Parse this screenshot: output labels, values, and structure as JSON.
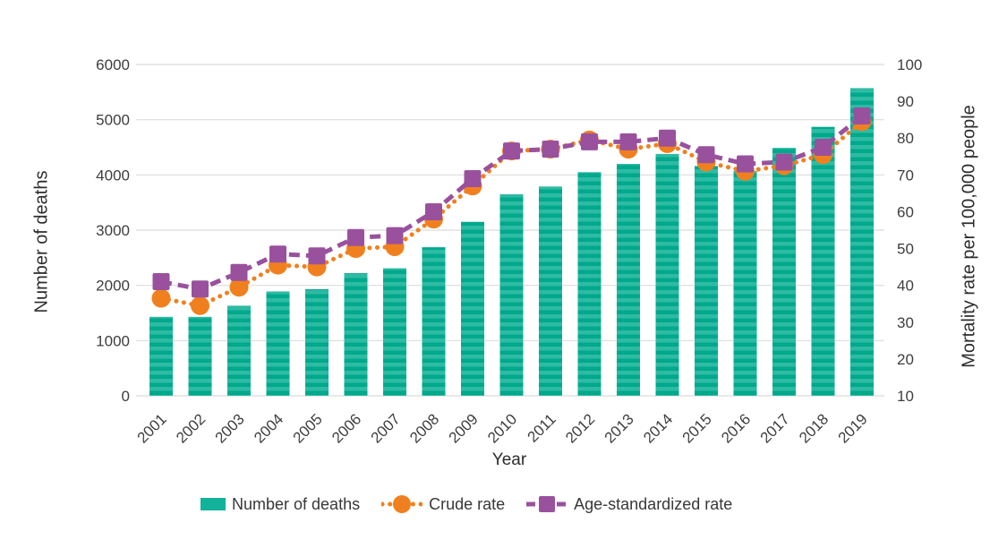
{
  "page": {
    "background": "#ffffff"
  },
  "colors": {
    "grid": "#dcdcdc",
    "text": "#3e3e3e",
    "bar_dark": "#00a88c",
    "bar_light": "#2ebba3",
    "bar_legend": "#12b29b",
    "crude": "#f0801f",
    "age_standardized": "#99519e"
  },
  "chart_data": {
    "type": "combo-bar-line",
    "x_label": "Year",
    "categories": [
      "2001",
      "2002",
      "2003",
      "2004",
      "2005",
      "2006",
      "2007",
      "2008",
      "2009",
      "2010",
      "2011",
      "2012",
      "2013",
      "2014",
      "2015",
      "2016",
      "2017",
      "2018",
      "2019"
    ],
    "left_axis": {
      "title": "Number of deaths",
      "min": 0,
      "max": 6000,
      "ticks": [
        0,
        1000,
        2000,
        3000,
        4000,
        5000,
        6000
      ]
    },
    "right_axis": {
      "title": "Mortality rate per 100,000 people",
      "min": 10,
      "max": 100,
      "ticks": [
        10,
        20,
        30,
        40,
        50,
        60,
        70,
        80,
        90,
        100
      ]
    },
    "grid": "horizontal",
    "legend_position": "bottom",
    "series": [
      {
        "name": "Number of deaths",
        "type": "bar",
        "axis": "left",
        "values": [
          1430,
          1430,
          1630,
          1890,
          1930,
          2220,
          2310,
          2690,
          3150,
          3650,
          3790,
          4050,
          4200,
          4380,
          4160,
          4070,
          4490,
          4870,
          5570
        ]
      },
      {
        "name": "Crude rate",
        "type": "line",
        "line_style": "dotted",
        "marker": "circle",
        "axis": "right",
        "values": [
          36.5,
          34.5,
          39.5,
          45.5,
          45,
          50,
          50.5,
          58,
          67,
          76.5,
          77,
          79.5,
          77,
          78.5,
          73.5,
          71,
          72.5,
          75.5,
          84.5
        ]
      },
      {
        "name": "Age-standardized rate",
        "type": "line",
        "line_style": "dashed",
        "marker": "square",
        "axis": "right",
        "values": [
          41,
          39,
          43.5,
          48.5,
          48,
          53,
          53.5,
          60,
          69,
          76.5,
          77,
          79,
          79,
          80,
          75.5,
          73,
          73.5,
          77.5,
          86
        ]
      }
    ]
  }
}
